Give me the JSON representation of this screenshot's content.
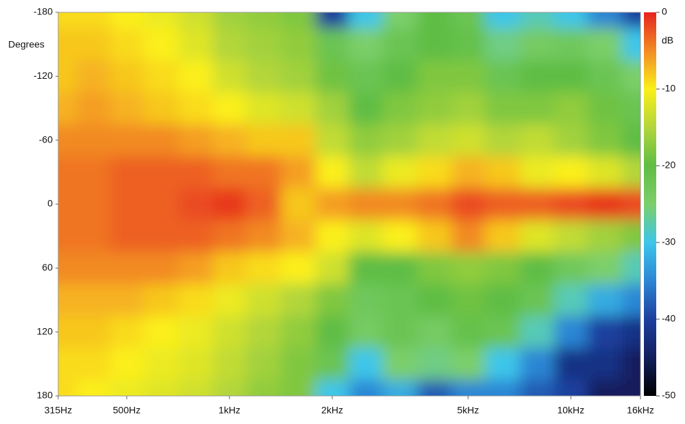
{
  "chart_data": {
    "type": "contour",
    "y_label": "Degrees",
    "z_label": "dB",
    "x": [
      315,
      400,
      500,
      630,
      800,
      1000,
      1250,
      1600,
      2000,
      2500,
      3150,
      4000,
      5000,
      6300,
      8000,
      10000,
      12500,
      16000
    ],
    "y": [
      -180,
      -150,
      -120,
      -90,
      -60,
      -30,
      0,
      30,
      60,
      90,
      120,
      150,
      180
    ],
    "z": [
      [
        -9,
        -9,
        -10,
        -11,
        -13,
        -16,
        -17,
        -18,
        -40,
        -30,
        -25,
        -20,
        -22,
        -30,
        -28,
        -30,
        -35,
        -40
      ],
      [
        -8,
        -8,
        -9,
        -10,
        -12,
        -15,
        -16,
        -17,
        -22,
        -25,
        -22,
        -20,
        -21,
        -26,
        -24,
        -23,
        -25,
        -30
      ],
      [
        -8,
        -7,
        -8,
        -9,
        -10,
        -13,
        -15,
        -16,
        -19,
        -22,
        -20,
        -18,
        -18,
        -22,
        -20,
        -20,
        -22,
        -25
      ],
      [
        -7,
        -6,
        -7,
        -8,
        -9,
        -10,
        -12,
        -13,
        -16,
        -20,
        -18,
        -17,
        -16,
        -18,
        -18,
        -17,
        -19,
        -22
      ],
      [
        -5,
        -5,
        -5,
        -5,
        -6,
        -7,
        -8,
        -8,
        -14,
        -17,
        -16,
        -14,
        -13,
        -15,
        -14,
        -16,
        -18,
        -20
      ],
      [
        -4,
        -4,
        -3,
        -3,
        -3,
        -4,
        -4,
        -6,
        -10,
        -14,
        -11,
        -9,
        -7,
        -8,
        -11,
        -10,
        -12,
        -15
      ],
      [
        -4,
        -4,
        -3,
        -3,
        -2,
        -1,
        -3,
        -8,
        -6,
        -5,
        -5,
        -4,
        -2,
        -3,
        -3,
        -2,
        -1,
        -2
      ],
      [
        -4,
        -4,
        -3,
        -3,
        -3,
        -4,
        -5,
        -7,
        -10,
        -12,
        -10,
        -8,
        -5,
        -8,
        -12,
        -14,
        -16,
        -18
      ],
      [
        -5,
        -5,
        -5,
        -5,
        -6,
        -8,
        -9,
        -10,
        -13,
        -20,
        -20,
        -18,
        -17,
        -18,
        -20,
        -23,
        -25,
        -28
      ],
      [
        -7,
        -7,
        -7,
        -8,
        -9,
        -11,
        -13,
        -15,
        -18,
        -23,
        -22,
        -20,
        -19,
        -20,
        -22,
        -28,
        -32,
        -35
      ],
      [
        -8,
        -8,
        -9,
        -10,
        -11,
        -13,
        -15,
        -17,
        -20,
        -24,
        -22,
        -24,
        -21,
        -22,
        -28,
        -35,
        -40,
        -42
      ],
      [
        -9,
        -9,
        -10,
        -11,
        -12,
        -14,
        -16,
        -18,
        -22,
        -30,
        -25,
        -26,
        -25,
        -30,
        -35,
        -42,
        -42,
        -45
      ],
      [
        -9,
        -10,
        -11,
        -12,
        -13,
        -15,
        -17,
        -18,
        -30,
        -35,
        -32,
        -38,
        -35,
        -35,
        -38,
        -40,
        -45,
        -45
      ]
    ],
    "xlim": [
      315,
      16000
    ],
    "x_log": true,
    "xticks": [
      {
        "value": 315,
        "label": "315Hz"
      },
      {
        "value": 500,
        "label": "500Hz"
      },
      {
        "value": 1000,
        "label": "1kHz"
      },
      {
        "value": 2000,
        "label": "2kHz"
      },
      {
        "value": 5000,
        "label": "5kHz"
      },
      {
        "value": 10000,
        "label": "10kHz"
      },
      {
        "value": 16000,
        "label": "16kHz"
      }
    ],
    "ylim": [
      -180,
      180
    ],
    "yticks": [
      -180,
      -120,
      -60,
      0,
      60,
      120,
      180
    ],
    "zlim": [
      -50,
      0
    ],
    "zticks": [
      0,
      -10,
      -20,
      -30,
      -40,
      -50
    ],
    "colormap": [
      {
        "value": 0,
        "color": "#e6231e"
      },
      {
        "value": -5,
        "color": "#f28a24"
      },
      {
        "value": -10,
        "color": "#fbef1a"
      },
      {
        "value": -15,
        "color": "#b2d63a"
      },
      {
        "value": -20,
        "color": "#5fbd44"
      },
      {
        "value": -25,
        "color": "#7ccf6a"
      },
      {
        "value": -30,
        "color": "#3cc6ea"
      },
      {
        "value": -35,
        "color": "#2b86d4"
      },
      {
        "value": -40,
        "color": "#1d3f9e"
      },
      {
        "value": -45,
        "color": "#121f5c"
      },
      {
        "value": -50,
        "color": "#000000"
      }
    ]
  }
}
